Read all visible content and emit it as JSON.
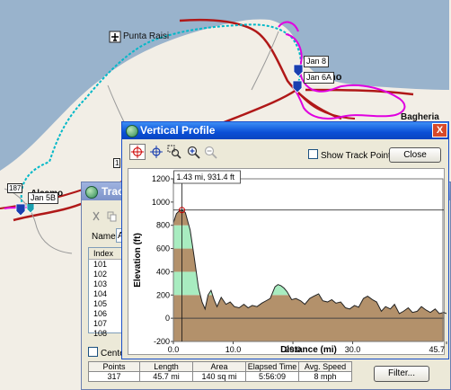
{
  "map": {
    "places": {
      "punta_raisi": "Punta Raisi",
      "alcamo": "Alcamo",
      "palermo_fragment": "no",
      "bagheria_fragment": "Bagheria"
    },
    "flags": [
      "Jan 8",
      "Jan 6A",
      "Jan 5B"
    ],
    "road_shields": [
      "187",
      "1"
    ],
    "colors": {
      "sea": "#99b3cc",
      "land": "#f2eee6",
      "track_cyan": "#00b8c8",
      "track_magenta": "#e000e0",
      "road_red": "#b01818"
    }
  },
  "track_window": {
    "title": "Track",
    "name_label": "Name:",
    "name_value": "A",
    "index_header": "Index",
    "index_rows": [
      "101",
      "102",
      "103",
      "104",
      "105",
      "106",
      "107",
      "108"
    ],
    "center_label": "Center",
    "stats": {
      "headers": [
        "Points",
        "Length",
        "Area",
        "Elapsed Time",
        "Avg. Speed"
      ],
      "values": [
        "317",
        "45.7 mi",
        "140 sq mi",
        "5:56:09",
        "8 mph"
      ]
    },
    "filter_label": "Filter..."
  },
  "profile_window": {
    "title": "Vertical Profile",
    "close_x": "X",
    "show_track_points_label": "Show Track Points",
    "show_track_points_checked": false,
    "close_label": "Close",
    "tools": [
      "crosshair-tool-icon",
      "move-tool-icon",
      "zoom-rect-icon",
      "zoom-in-icon",
      "zoom-out-icon"
    ]
  },
  "chart_data": {
    "type": "area",
    "xlabel": "Distance  (mi)",
    "ylabel": "Elevation (ft)",
    "xlim": [
      0,
      45.7
    ],
    "ylim": [
      -200,
      1200
    ],
    "x_ticks": [
      "0.0",
      "10.0",
      "20.0",
      "30.0",
      "45.7"
    ],
    "y_ticks": [
      "1200",
      "1000",
      "800",
      "600",
      "400",
      "200",
      "0",
      "-200"
    ],
    "elevation_bands": [
      {
        "from": 0,
        "to": 200,
        "color": "#b3916b"
      },
      {
        "from": 200,
        "to": 400,
        "color": "#a8ecc0"
      },
      {
        "from": 400,
        "to": 600,
        "color": "#b3916b"
      },
      {
        "from": 600,
        "to": 800,
        "color": "#a8ecc0"
      },
      {
        "from": 800,
        "to": 1000,
        "color": "#b3916b"
      }
    ],
    "cursor": {
      "x": 1.43,
      "y": 931.4,
      "label": "1.43 mi, 931.4 ft"
    },
    "x": [
      0,
      0.5,
      1.0,
      1.43,
      2.0,
      2.8,
      3.5,
      4.2,
      4.8,
      5.3,
      5.8,
      6.3,
      6.8,
      7.3,
      8.0,
      8.8,
      9.5,
      10.2,
      11.0,
      11.8,
      12.5,
      13.2,
      14.0,
      14.8,
      15.5,
      16.2,
      17.0,
      17.5,
      18.0,
      18.5,
      19.0,
      19.8,
      20.5,
      21.3,
      22.0,
      22.8,
      23.5,
      24.3,
      25.0,
      25.8,
      26.5,
      27.2,
      28.0,
      28.8,
      29.5,
      30.3,
      31.0,
      31.8,
      32.5,
      33.3,
      34.0,
      34.8,
      35.5,
      36.3,
      37.0,
      37.8,
      38.5,
      39.3,
      40.0,
      40.8,
      41.5,
      42.3,
      43.0,
      43.8,
      44.5,
      45.2,
      45.7
    ],
    "y": [
      820,
      900,
      925,
      931,
      910,
      760,
      520,
      260,
      140,
      80,
      200,
      240,
      160,
      100,
      180,
      120,
      140,
      100,
      90,
      120,
      90,
      110,
      100,
      130,
      150,
      170,
      270,
      290,
      280,
      260,
      230,
      160,
      170,
      150,
      120,
      170,
      190,
      210,
      150,
      140,
      160,
      130,
      140,
      90,
      80,
      110,
      95,
      170,
      190,
      160,
      140,
      60,
      100,
      80,
      120,
      40,
      60,
      90,
      50,
      60,
      100,
      70,
      50,
      80,
      40,
      50,
      40
    ]
  }
}
